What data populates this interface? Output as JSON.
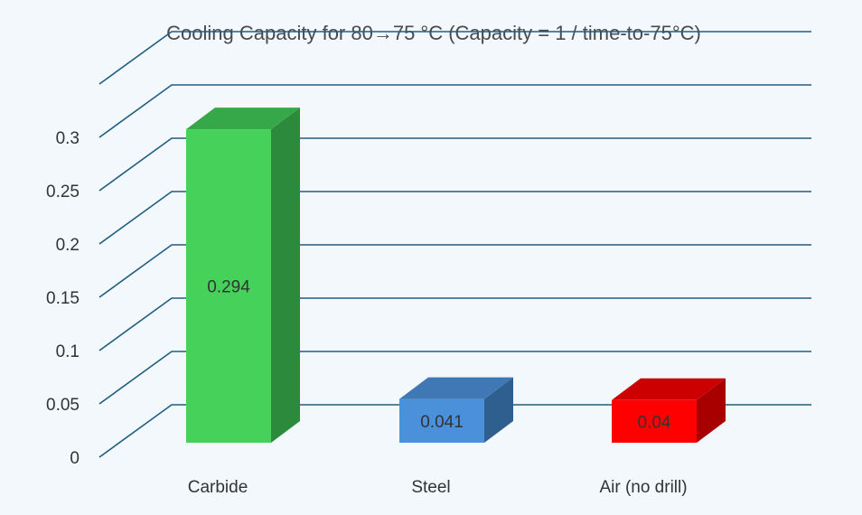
{
  "chart_data": {
    "type": "bar",
    "title": "Cooling Capacity for 80→75 °C (Capacity = 1 / time-to-75°C)",
    "categories": [
      "Carbide",
      "Steel",
      "Air (no drill)"
    ],
    "values": [
      0.294,
      0.041,
      0.04
    ],
    "data_labels": [
      "0.294",
      "0.041",
      "0.04"
    ],
    "ylim": [
      0,
      0.35
    ],
    "yticks": [
      0,
      0.05,
      0.1,
      0.15,
      0.2,
      0.25,
      0.3
    ],
    "ytick_labels": [
      "0",
      "0.05",
      "0.1",
      "0.15",
      "0.2",
      "0.25",
      "0.3"
    ],
    "grid": true,
    "style": "3d-column",
    "legend": "none",
    "colors": {
      "background": "#f3f8fc",
      "gridline": "#1f5d80",
      "bars": [
        {
          "front": "#45d15a",
          "side": "#2b8a3c",
          "top": "#36a84a"
        },
        {
          "front": "#4b90da",
          "side": "#2f5f8e",
          "top": "#3f78b4"
        },
        {
          "front": "#ff0000",
          "side": "#a80000",
          "top": "#cc0000"
        }
      ]
    }
  }
}
